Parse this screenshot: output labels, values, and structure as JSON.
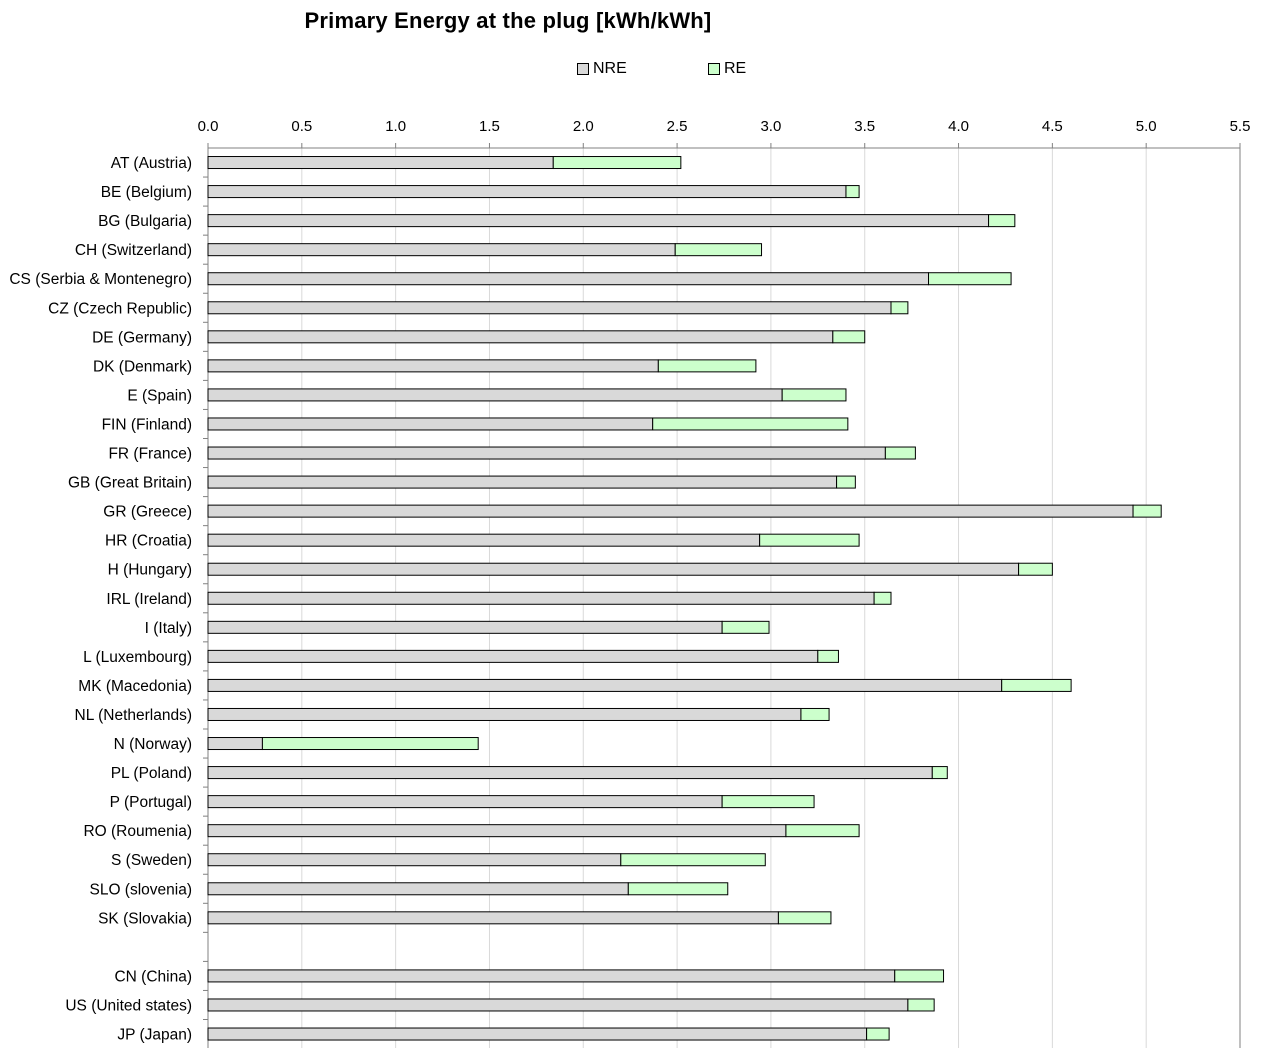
{
  "chart_data": {
    "type": "bar",
    "orientation": "horizontal",
    "stacked": true,
    "title": "Primary Energy at the plug [kWh/kWh]",
    "xlim": [
      0,
      5.5
    ],
    "x_ticks": [
      "0.0",
      "0.5",
      "1.0",
      "1.5",
      "2.0",
      "2.5",
      "3.0",
      "3.5",
      "4.0",
      "4.5",
      "5.0",
      "5.5"
    ],
    "grid": true,
    "legend_position": "top",
    "categories": [
      "AT (Austria)",
      "BE (Belgium)",
      "BG (Bulgaria)",
      "CH (Switzerland)",
      "CS (Serbia & Montenegro)",
      "CZ (Czech Republic)",
      "DE (Germany)",
      "DK (Denmark)",
      "E (Spain)",
      "FIN (Finland)",
      "FR (France)",
      "GB (Great Britain)",
      "GR (Greece)",
      "HR (Croatia)",
      "H (Hungary)",
      "IRL (Ireland)",
      "I (Italy)",
      "L (Luxembourg)",
      "MK (Macedonia)",
      "NL (Netherlands)",
      "N (Norway)",
      "PL (Poland)",
      "P (Portugal)",
      "RO (Roumenia)",
      "S (Sweden)",
      "SLO (slovenia)",
      "SK (Slovakia)",
      "",
      "CN  (China)",
      "US (United states)",
      "JP (Japan)"
    ],
    "series": [
      {
        "name": "NRE",
        "color": "#d9d9d9",
        "values": [
          1.84,
          3.4,
          4.16,
          2.49,
          3.84,
          3.64,
          3.33,
          2.4,
          3.06,
          2.37,
          3.61,
          3.35,
          4.93,
          2.94,
          4.32,
          3.55,
          2.74,
          3.25,
          4.23,
          3.16,
          0.29,
          3.86,
          2.74,
          3.08,
          2.2,
          2.24,
          3.04,
          null,
          3.66,
          3.73,
          3.51
        ]
      },
      {
        "name": "RE",
        "color": "#ccffcc",
        "values": [
          0.68,
          0.07,
          0.14,
          0.46,
          0.44,
          0.09,
          0.17,
          0.52,
          0.34,
          1.04,
          0.16,
          0.1,
          0.15,
          0.53,
          0.18,
          0.09,
          0.25,
          0.11,
          0.37,
          0.15,
          1.15,
          0.08,
          0.49,
          0.39,
          0.77,
          0.53,
          0.28,
          null,
          0.26,
          0.14,
          0.12
        ]
      }
    ]
  }
}
